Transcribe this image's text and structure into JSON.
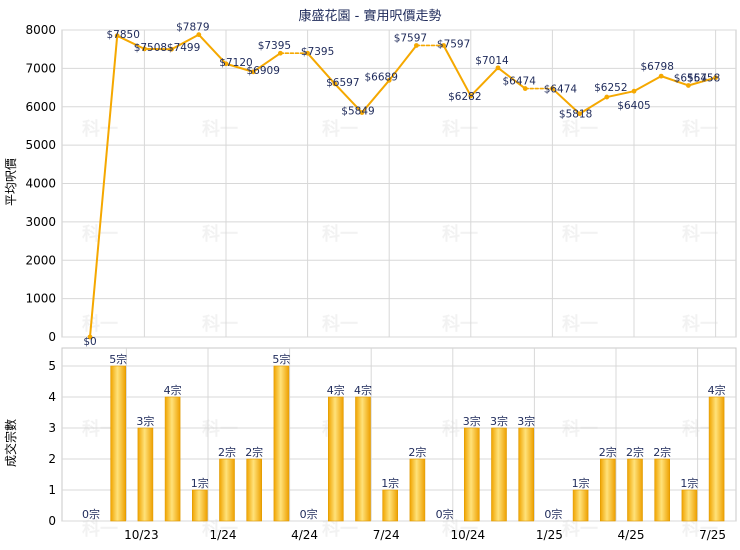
{
  "chart_data": [
    {
      "type": "line",
      "title": "康盛花園 - 實用呎價走勢",
      "ylabel": "平均呎價",
      "ylim": [
        0,
        8000
      ],
      "yticks": [
        0,
        1000,
        2000,
        3000,
        4000,
        5000,
        6000,
        7000,
        8000
      ],
      "grid": true,
      "color": "#f5a800",
      "values": [
        0,
        7850,
        7508,
        7499,
        7879,
        7120,
        6909,
        7395,
        7395,
        6597,
        5849,
        6689,
        7597,
        7597,
        6282,
        7014,
        6474,
        6474,
        5818,
        6252,
        6405,
        6798,
        6554,
        6758
      ],
      "labels": [
        "$0",
        "$7850",
        "$7508",
        "$7499",
        "$7879",
        "$7120",
        "$6909",
        "$7395",
        "$7395",
        "$6597",
        "$5849",
        "$6689",
        "$7597",
        "$7597",
        "$6282",
        "$7014",
        "$6474",
        "$6474",
        "$5818",
        "$6252",
        "$6405",
        "$6798",
        "$6554",
        "$6758"
      ],
      "label_text": [
        "$0",
        "$7850",
        "$7508",
        "$7499",
        "$7879",
        "$7120",
        "$6909",
        "$7395",
        "$7395",
        "$6597",
        "$5849",
        "$6689",
        "$7597",
        "$7597",
        "$6282",
        "$7014",
        "$6474",
        "$6474",
        "$5818",
        "$6252",
        "",
        "$6798",
        "$6554",
        "$6758"
      ],
      "extra_labels": [
        {
          "index": 20,
          "text": "$6405"
        }
      ],
      "dashed_segments": [
        [
          7,
          8
        ],
        [
          12,
          13
        ],
        [
          16,
          17
        ]
      ]
    },
    {
      "type": "bar",
      "ylabel": "成交宗數",
      "ylim": [
        0,
        5
      ],
      "yticks": [
        0,
        1,
        2,
        3,
        4,
        5
      ],
      "grid": true,
      "values": [
        0,
        5,
        3,
        4,
        1,
        2,
        2,
        5,
        0,
        4,
        4,
        1,
        2,
        0,
        3,
        3,
        3,
        0,
        1,
        2,
        2,
        2,
        1,
        4
      ],
      "labels": [
        "0宗",
        "5宗",
        "3宗",
        "4宗",
        "1宗",
        "2宗",
        "2宗",
        "5宗",
        "0宗",
        "4宗",
        "4宗",
        "1宗",
        "2宗",
        "0宗",
        "3宗",
        "3宗",
        "3宗",
        "0宗",
        "1宗",
        "2宗",
        "2宗",
        "2宗",
        "1宗",
        "4宗"
      ],
      "xtick_labels": [
        {
          "index": 2,
          "label": "10/23"
        },
        {
          "index": 5,
          "label": "1/24"
        },
        {
          "index": 8,
          "label": "4/24"
        },
        {
          "index": 11,
          "label": "7/24"
        },
        {
          "index": 14,
          "label": "10/24"
        },
        {
          "index": 17,
          "label": "1/25"
        },
        {
          "index": 20,
          "label": "4/25"
        },
        {
          "index": 23,
          "label": "7/25"
        }
      ]
    }
  ],
  "watermark": "科一"
}
